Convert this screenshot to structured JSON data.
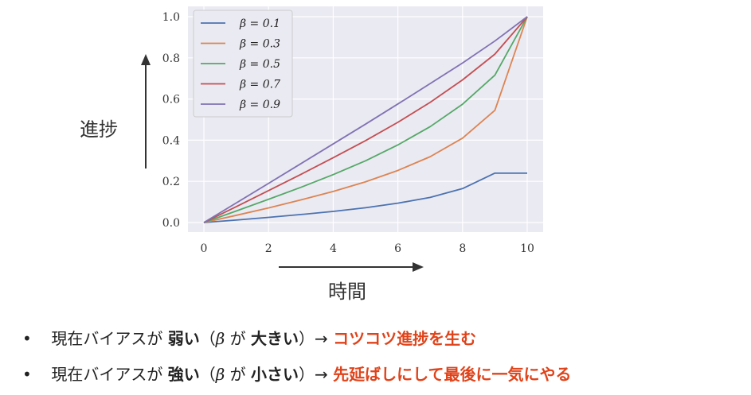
{
  "chart_data": {
    "type": "line",
    "xlabel": "時間",
    "ylabel": "進捗",
    "xlim": [
      0,
      10
    ],
    "ylim": [
      0,
      1.0
    ],
    "x_ticks": [
      "0",
      "2",
      "4",
      "6",
      "8",
      "10"
    ],
    "y_ticks": [
      "0.0",
      "0.2",
      "0.4",
      "0.6",
      "0.8",
      "1.0"
    ],
    "grid": true,
    "legend_position": "top-left",
    "x": [
      0,
      1,
      2,
      3,
      4,
      5,
      6,
      7,
      8,
      9,
      10
    ],
    "series": [
      {
        "name": "β = 0.1",
        "color": "#4c72b0",
        "values": [
          0,
          0.012,
          0.025,
          0.039,
          0.054,
          0.072,
          0.094,
          0.122,
          0.165,
          0.24,
          0.24
        ]
      },
      {
        "name": "β = 0.3",
        "color": "#dd8452",
        "values": [
          0,
          0.035,
          0.071,
          0.11,
          0.151,
          0.198,
          0.253,
          0.32,
          0.41,
          0.545,
          1.0
        ]
      },
      {
        "name": "β = 0.5",
        "color": "#55a868",
        "values": [
          0,
          0.056,
          0.113,
          0.171,
          0.233,
          0.3,
          0.377,
          0.466,
          0.575,
          0.716,
          1.0
        ]
      },
      {
        "name": "β = 0.7",
        "color": "#c44e52",
        "values": [
          0,
          0.077,
          0.155,
          0.234,
          0.315,
          0.398,
          0.487,
          0.584,
          0.693,
          0.818,
          1.0
        ]
      },
      {
        "name": "β = 0.9",
        "color": "#8172b3",
        "values": [
          0,
          0.095,
          0.19,
          0.286,
          0.382,
          0.478,
          0.576,
          0.675,
          0.775,
          0.882,
          1.0
        ]
      }
    ]
  },
  "bullets": [
    {
      "mark": "•",
      "prefix": "現在バイアスが",
      "strength": "弱い",
      "paren_open": "（",
      "beta": "β",
      "ga": "が",
      "size": "大きい",
      "paren_close": "）→",
      "result": "コツコツ進捗を生む"
    },
    {
      "mark": "•",
      "prefix": "現在バイアスが",
      "strength": "強い",
      "paren_open": "（",
      "beta": "β",
      "ga": "が",
      "size": "小さい",
      "paren_close": "）→",
      "result": "先延ばしにして最後に一気にやる"
    }
  ]
}
